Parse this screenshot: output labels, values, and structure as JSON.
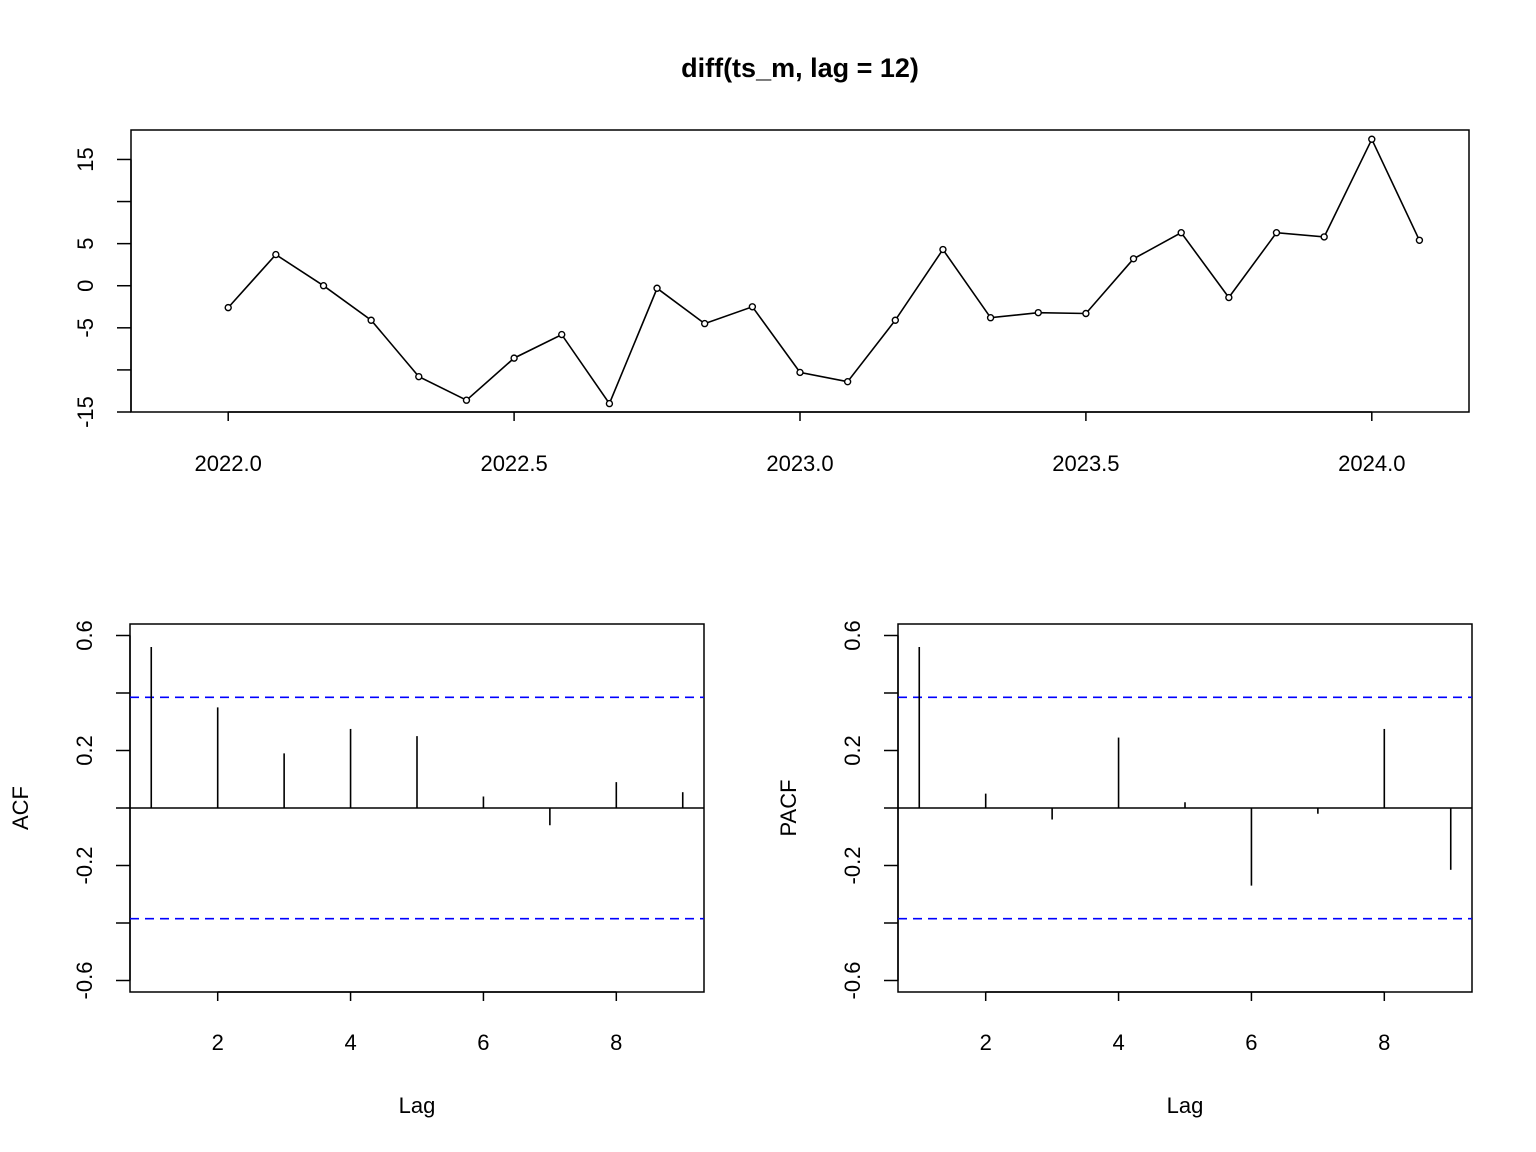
{
  "chart_data": [
    {
      "type": "line",
      "title": "diff(ts_m, lag = 12)",
      "xlabel": "",
      "ylabel": "",
      "x": [
        2022.0,
        2022.0833,
        2022.1667,
        2022.25,
        2022.3333,
        2022.4167,
        2022.5,
        2022.5833,
        2022.6667,
        2022.75,
        2022.8333,
        2022.9167,
        2023.0,
        2023.0833,
        2023.1667,
        2023.25,
        2023.3333,
        2023.4167,
        2023.5,
        2023.5833,
        2023.6667,
        2023.75,
        2023.8333,
        2023.9167,
        2024.0,
        2024.0833
      ],
      "values": [
        -2.6,
        3.7,
        0.0,
        -4.1,
        -10.8,
        -13.6,
        -8.6,
        -5.8,
        -14.0,
        -0.3,
        -4.5,
        -2.5,
        -10.3,
        -11.4,
        -4.1,
        4.3,
        -3.8,
        -3.2,
        -3.3,
        3.2,
        6.3,
        -1.4,
        6.3,
        5.8,
        17.4,
        5.4
      ],
      "xlim": [
        2021.83,
        2024.17
      ],
      "ylim": [
        -15,
        18.5
      ],
      "xticks": [
        "2022.0",
        "2022.5",
        "2023.0",
        "2023.5",
        "2024.0"
      ],
      "yticks": [
        "-15",
        "-5",
        "0",
        "5",
        "15"
      ],
      "ytick_minor": [
        -10,
        10
      ],
      "markers": "open-circle",
      "color": "#000000"
    },
    {
      "type": "bar",
      "subtype": "acf",
      "title": "",
      "xlabel": "Lag",
      "ylabel": "ACF",
      "x": [
        1,
        2,
        3,
        4,
        5,
        6,
        7,
        8,
        9
      ],
      "values": [
        0.56,
        0.35,
        0.19,
        0.275,
        0.25,
        0.04,
        -0.06,
        0.09,
        0.055
      ],
      "ci": 0.385,
      "ci_color": "#0000ff",
      "xlim": [
        0.68,
        9.32
      ],
      "ylim": [
        -0.64,
        0.64
      ],
      "xticks": [
        "2",
        "4",
        "6",
        "8"
      ],
      "yticks": [
        "-0.6",
        "-0.2",
        "0.2",
        "0.6"
      ],
      "ytick_minor": [
        -0.4,
        0.0,
        0.4
      ]
    },
    {
      "type": "bar",
      "subtype": "pacf",
      "title": "",
      "xlabel": "Lag",
      "ylabel": "PACF",
      "x": [
        1,
        2,
        3,
        4,
        5,
        6,
        7,
        8,
        9
      ],
      "values": [
        0.56,
        0.05,
        -0.04,
        0.245,
        0.02,
        -0.27,
        -0.02,
        0.275,
        -0.215
      ],
      "ci": 0.385,
      "ci_color": "#0000ff",
      "xlim": [
        0.68,
        9.32
      ],
      "ylim": [
        -0.64,
        0.64
      ],
      "xticks": [
        "2",
        "4",
        "6",
        "8"
      ],
      "yticks": [
        "-0.6",
        "-0.2",
        "0.2",
        "0.6"
      ],
      "ytick_minor": [
        -0.4,
        0.0,
        0.4
      ]
    }
  ]
}
